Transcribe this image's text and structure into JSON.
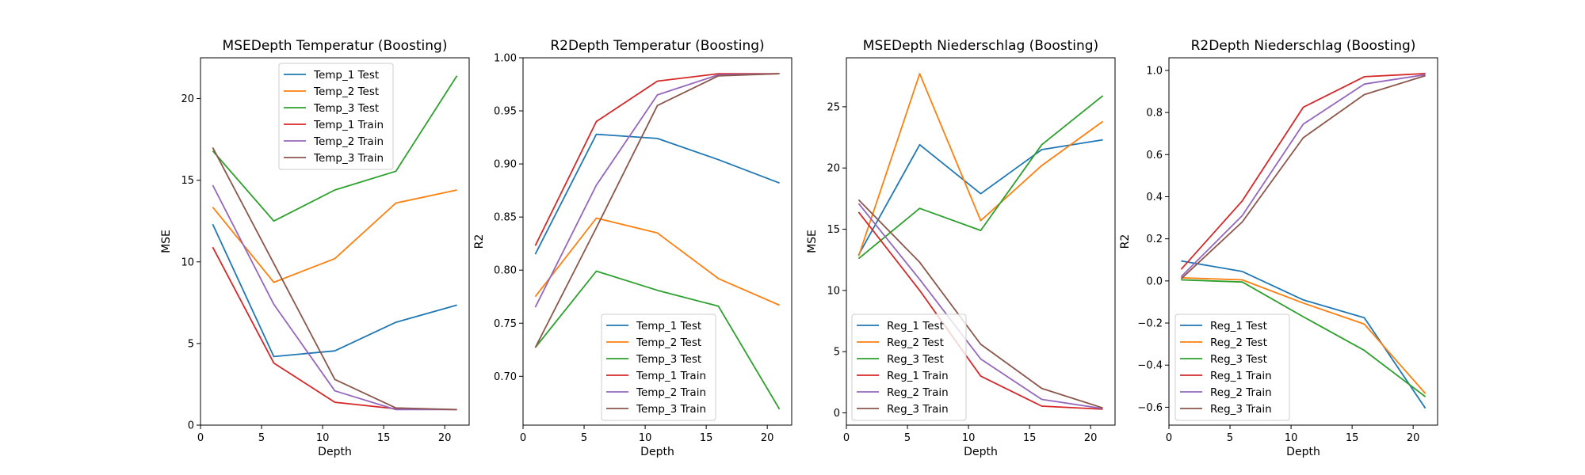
{
  "chart_data": [
    {
      "type": "line",
      "title": "MSEDepth Temperatur (Boosting)",
      "xlabel": "Depth",
      "ylabel": "MSE",
      "xlim": [
        0,
        22
      ],
      "ylim": [
        0,
        22.5
      ],
      "xticks": [
        0,
        5,
        10,
        15,
        20
      ],
      "yticks": [
        0,
        5,
        10,
        15,
        20
      ],
      "ytick_labels": [
        "0",
        "5",
        "10",
        "15",
        "20"
      ],
      "legend": "upper center",
      "x": [
        1,
        6,
        11,
        16,
        21
      ],
      "series": [
        {
          "name": "Temp_1 Test",
          "color": "#1f77b4",
          "values": [
            12.3,
            4.2,
            4.55,
            6.3,
            7.35
          ]
        },
        {
          "name": "Temp_2 Test",
          "color": "#ff7f0e",
          "values": [
            13.35,
            8.75,
            10.2,
            13.6,
            14.4
          ]
        },
        {
          "name": "Temp_3 Test",
          "color": "#2ca02c",
          "values": [
            16.8,
            12.5,
            14.4,
            15.55,
            21.4
          ]
        },
        {
          "name": "Temp_1 Train",
          "color": "#d62728",
          "values": [
            10.9,
            3.8,
            1.4,
            1.0,
            0.95
          ]
        },
        {
          "name": "Temp_2 Train",
          "color": "#9467bd",
          "values": [
            14.7,
            7.4,
            2.1,
            0.95,
            0.95
          ]
        },
        {
          "name": "Temp_3 Train",
          "color": "#8c564b",
          "values": [
            17.0,
            9.9,
            2.8,
            1.05,
            0.95
          ]
        }
      ]
    },
    {
      "type": "line",
      "title": "R2Depth Temperatur (Boosting)",
      "xlabel": "Depth",
      "ylabel": "R2",
      "xlim": [
        0,
        22
      ],
      "ylim": [
        0.654,
        1.0
      ],
      "xticks": [
        0,
        5,
        10,
        15,
        20
      ],
      "yticks": [
        0.7,
        0.75,
        0.8,
        0.85,
        0.9,
        0.95,
        1.0
      ],
      "ytick_labels": [
        "0.70",
        "0.75",
        "0.80",
        "0.85",
        "0.90",
        "0.95",
        "1.00"
      ],
      "legend": "lower center",
      "x": [
        1,
        6,
        11,
        16,
        21
      ],
      "series": [
        {
          "name": "Temp_1 Test",
          "color": "#1f77b4",
          "values": [
            0.815,
            0.928,
            0.924,
            0.904,
            0.882
          ]
        },
        {
          "name": "Temp_2 Test",
          "color": "#ff7f0e",
          "values": [
            0.775,
            0.849,
            0.835,
            0.792,
            0.767
          ]
        },
        {
          "name": "Temp_3 Test",
          "color": "#2ca02c",
          "values": [
            0.727,
            0.799,
            0.781,
            0.766,
            0.669
          ]
        },
        {
          "name": "Temp_1 Train",
          "color": "#d62728",
          "values": [
            0.823,
            0.94,
            0.978,
            0.985,
            0.985
          ]
        },
        {
          "name": "Temp_2 Train",
          "color": "#9467bd",
          "values": [
            0.765,
            0.88,
            0.965,
            0.984,
            0.985
          ]
        },
        {
          "name": "Temp_3 Train",
          "color": "#8c564b",
          "values": [
            0.727,
            0.84,
            0.955,
            0.983,
            0.985
          ]
        }
      ]
    },
    {
      "type": "line",
      "title": "MSEDepth Niederschlag (Boosting)",
      "xlabel": "Depth",
      "ylabel": "MSE",
      "xlim": [
        0,
        22
      ],
      "ylim": [
        -1.0,
        29.0
      ],
      "xticks": [
        0,
        5,
        10,
        15,
        20
      ],
      "yticks": [
        0,
        5,
        10,
        15,
        20,
        25
      ],
      "ytick_labels": [
        "0",
        "5",
        "10",
        "15",
        "20",
        "25"
      ],
      "legend": "lower left",
      "x": [
        1,
        6,
        11,
        16,
        21
      ],
      "series": [
        {
          "name": "Reg_1 Test",
          "color": "#1f77b4",
          "values": [
            12.9,
            21.9,
            17.9,
            21.5,
            22.3
          ]
        },
        {
          "name": "Reg_2 Test",
          "color": "#ff7f0e",
          "values": [
            12.8,
            27.7,
            15.7,
            20.2,
            23.8
          ]
        },
        {
          "name": "Reg_3 Test",
          "color": "#2ca02c",
          "values": [
            12.6,
            16.7,
            14.9,
            21.9,
            25.9
          ]
        },
        {
          "name": "Reg_1 Train",
          "color": "#d62728",
          "values": [
            16.4,
            10.0,
            3.0,
            0.55,
            0.3
          ]
        },
        {
          "name": "Reg_2 Train",
          "color": "#9467bd",
          "values": [
            17.1,
            10.9,
            4.4,
            1.1,
            0.35
          ]
        },
        {
          "name": "Reg_3 Train",
          "color": "#8c564b",
          "values": [
            17.4,
            12.3,
            5.6,
            2.0,
            0.4
          ]
        }
      ]
    },
    {
      "type": "line",
      "title": "R2Depth Niederschlag (Boosting)",
      "xlabel": "Depth",
      "ylabel": "R2",
      "xlim": [
        0,
        22
      ],
      "ylim": [
        -0.685,
        1.06
      ],
      "xticks": [
        0,
        5,
        10,
        15,
        20
      ],
      "yticks": [
        -0.6,
        -0.4,
        -0.2,
        0.0,
        0.2,
        0.4,
        0.6,
        0.8,
        1.0
      ],
      "ytick_labels": [
        "−0.6",
        "−0.4",
        "−0.2",
        "0.0",
        "0.2",
        "0.4",
        "0.6",
        "0.8",
        "1.0"
      ],
      "legend": "lower left",
      "x": [
        1,
        6,
        11,
        16,
        21
      ],
      "series": [
        {
          "name": "Reg_1 Test",
          "color": "#1f77b4",
          "values": [
            0.095,
            0.045,
            -0.09,
            -0.175,
            -0.605
          ]
        },
        {
          "name": "Reg_2 Test",
          "color": "#ff7f0e",
          "values": [
            0.015,
            0.005,
            -0.105,
            -0.205,
            -0.535
          ]
        },
        {
          "name": "Reg_3 Test",
          "color": "#2ca02c",
          "values": [
            0.005,
            -0.005,
            -0.17,
            -0.33,
            -0.55
          ]
        },
        {
          "name": "Reg_1 Train",
          "color": "#d62728",
          "values": [
            0.055,
            0.38,
            0.825,
            0.97,
            0.985
          ]
        },
        {
          "name": "Reg_2 Train",
          "color": "#9467bd",
          "values": [
            0.02,
            0.31,
            0.745,
            0.935,
            0.98
          ]
        },
        {
          "name": "Reg_3 Train",
          "color": "#8c564b",
          "values": [
            0.01,
            0.28,
            0.68,
            0.885,
            0.975
          ]
        }
      ]
    }
  ]
}
